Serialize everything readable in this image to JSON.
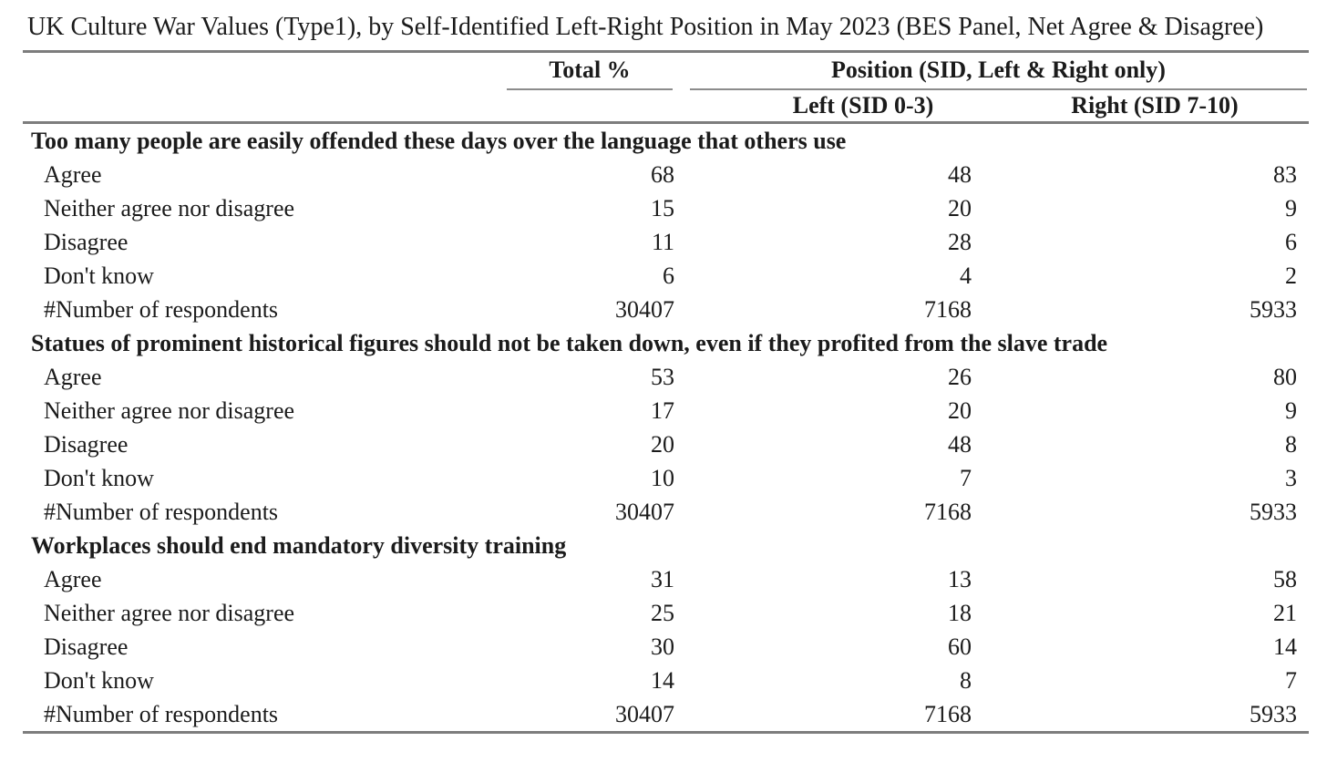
{
  "title": "UK Culture War Values (Type1), by Self-Identified Left-Right Position in May 2023 (BES Panel, Net Agree & Disagree)",
  "rules_color": "#7d7d7d",
  "table": {
    "columns": {
      "total_label": "Total %",
      "position_label": "Position (SID, Left & Right only)",
      "left_label": "Left (SID 0-3)",
      "right_label": "Right (SID 7-10)"
    },
    "sections": [
      {
        "heading": "Too many people are easily offended these days over the language that others use",
        "rows": [
          {
            "label": "Agree",
            "total": "68",
            "left": "48",
            "right": "83"
          },
          {
            "label": "Neither agree nor disagree",
            "total": "15",
            "left": "20",
            "right": "9"
          },
          {
            "label": "Disagree",
            "total": "11",
            "left": "28",
            "right": "6"
          },
          {
            "label": "Don't know",
            "total": "6",
            "left": "4",
            "right": "2"
          },
          {
            "label": "#Number of respondents",
            "total": "30407",
            "left": "7168",
            "right": "5933"
          }
        ]
      },
      {
        "heading": "Statues of prominent historical figures should not be taken down, even if they profited from the slave trade",
        "rows": [
          {
            "label": "Agree",
            "total": "53",
            "left": "26",
            "right": "80"
          },
          {
            "label": "Neither agree nor disagree",
            "total": "17",
            "left": "20",
            "right": "9"
          },
          {
            "label": "Disagree",
            "total": "20",
            "left": "48",
            "right": "8"
          },
          {
            "label": "Don't know",
            "total": "10",
            "left": "7",
            "right": "3"
          },
          {
            "label": "#Number of respondents",
            "total": "30407",
            "left": "7168",
            "right": "5933"
          }
        ]
      },
      {
        "heading": "Workplaces should end mandatory diversity training",
        "rows": [
          {
            "label": "Agree",
            "total": "31",
            "left": "13",
            "right": "58"
          },
          {
            "label": "Neither agree nor disagree",
            "total": "25",
            "left": "18",
            "right": "21"
          },
          {
            "label": "Disagree",
            "total": "30",
            "left": "60",
            "right": "14"
          },
          {
            "label": "Don't know",
            "total": "14",
            "left": "8",
            "right": "7"
          },
          {
            "label": "#Number of respondents",
            "total": "30407",
            "left": "7168",
            "right": "5933"
          }
        ]
      }
    ]
  }
}
